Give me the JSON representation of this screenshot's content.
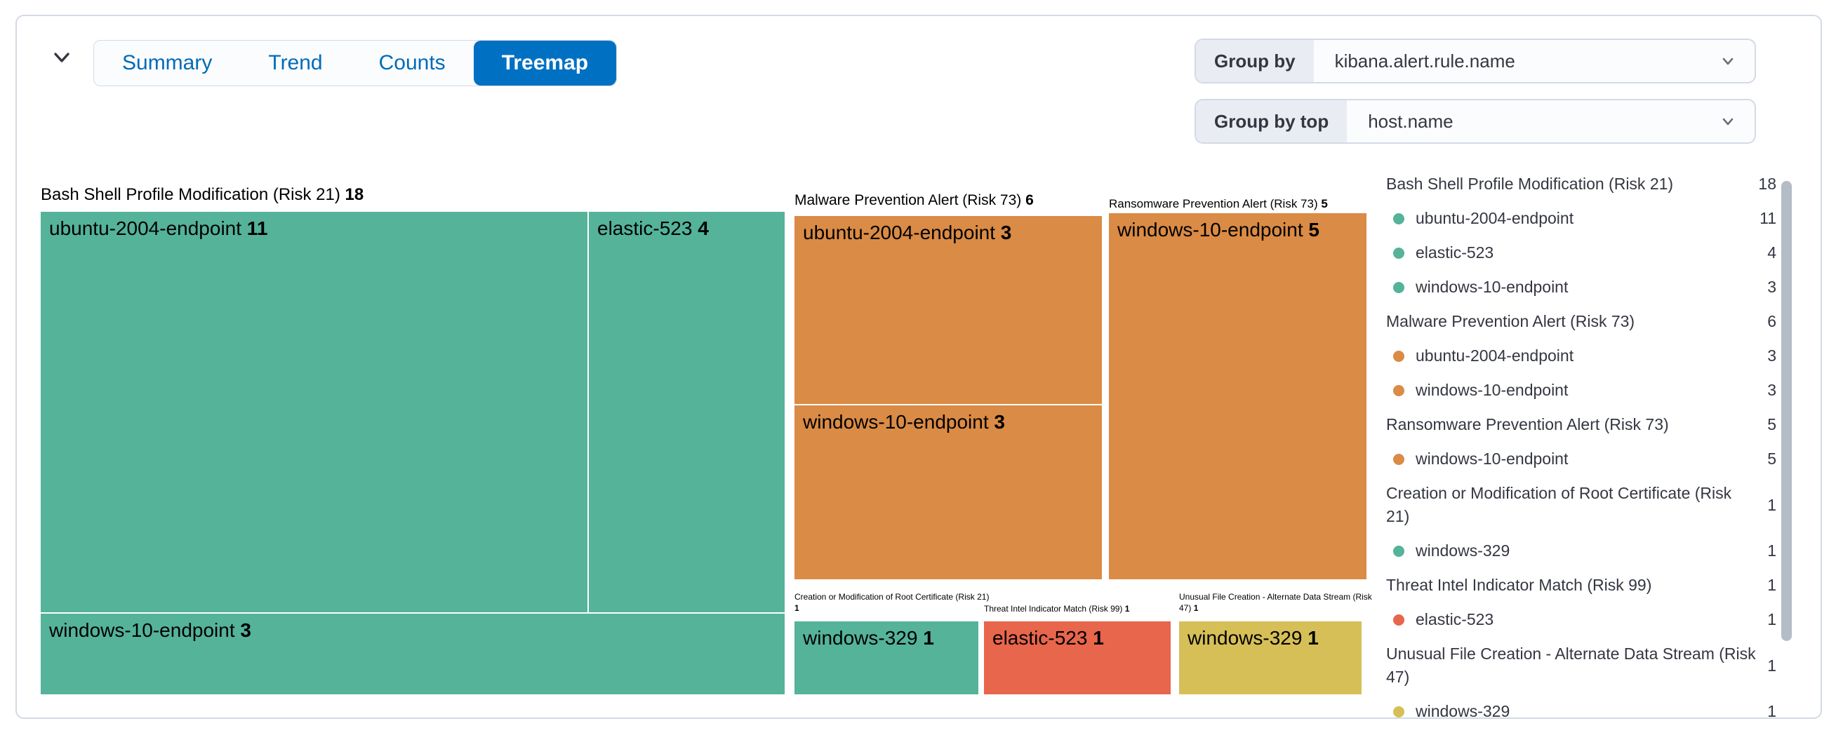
{
  "tabs": [
    {
      "label": "Summary",
      "selected": false
    },
    {
      "label": "Trend",
      "selected": false
    },
    {
      "label": "Counts",
      "selected": false
    },
    {
      "label": "Treemap",
      "selected": true
    }
  ],
  "controls": {
    "group_by": {
      "label": "Group by",
      "value": "kibana.alert.rule.name"
    },
    "group_by_top": {
      "label": "Group by top",
      "value": "host.name"
    }
  },
  "chart_data": {
    "type": "treemap",
    "group_field": "kibana.alert.rule.name",
    "child_field": "host.name",
    "groups": [
      {
        "rule": "Bash Shell Profile Modification (Risk 21)",
        "count": 18,
        "color": "#54b399",
        "hosts": [
          {
            "name": "ubuntu-2004-endpoint",
            "value": 11
          },
          {
            "name": "elastic-523",
            "value": 4
          },
          {
            "name": "windows-10-endpoint",
            "value": 3
          }
        ]
      },
      {
        "rule": "Malware Prevention Alert (Risk 73)",
        "count": 6,
        "color": "#da8b45",
        "hosts": [
          {
            "name": "ubuntu-2004-endpoint",
            "value": 3
          },
          {
            "name": "windows-10-endpoint",
            "value": 3
          }
        ]
      },
      {
        "rule": "Ransomware Prevention Alert (Risk 73)",
        "count": 5,
        "color": "#da8b45",
        "hosts": [
          {
            "name": "windows-10-endpoint",
            "value": 5
          }
        ]
      },
      {
        "rule": "Creation or Modification of Root Certificate (Risk 21)",
        "count": 1,
        "color": "#54b399",
        "hosts": [
          {
            "name": "windows-329",
            "value": 1
          }
        ]
      },
      {
        "rule": "Threat Intel Indicator Match (Risk 99)",
        "count": 1,
        "color": "#e7664c",
        "hosts": [
          {
            "name": "elastic-523",
            "value": 1
          }
        ]
      },
      {
        "rule": "Unusual File Creation - Alternate Data Stream (Risk 47)",
        "count": 1,
        "color": "#d6bf57",
        "hosts": [
          {
            "name": "windows-329",
            "value": 1
          }
        ]
      }
    ]
  },
  "colors": {
    "selected_tab_blue": "#0071c2",
    "tab_text_blue": "#006bb8",
    "panel_border": "#d3dae6",
    "risk_low_green": "#54b399",
    "risk_medium_orange": "#da8b45",
    "risk_high_red": "#e7664c",
    "risk_yellow": "#d6bf57",
    "text_dark": "#343741"
  }
}
